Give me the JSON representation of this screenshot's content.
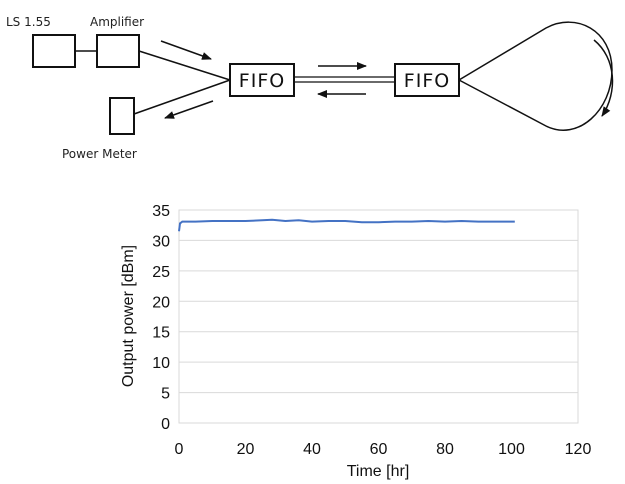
{
  "diagram": {
    "labels": {
      "source": "LS 1.55",
      "amplifier": "Amplifier",
      "power_meter": "Power Meter",
      "fifo_left": "FIFO",
      "fifo_right": "FIFO"
    }
  },
  "chart_data": {
    "type": "line",
    "title": "",
    "xlabel": "Time [hr]",
    "ylabel": "Output power [dBm]",
    "xlim": [
      0,
      120
    ],
    "ylim": [
      0,
      35
    ],
    "xticks": [
      0,
      20,
      40,
      60,
      80,
      100,
      120
    ],
    "yticks": [
      0,
      5,
      10,
      15,
      20,
      25,
      30,
      35
    ],
    "grid": "horizontal",
    "legend": "none",
    "series": [
      {
        "color": "#4472C4",
        "x": [
          0,
          0.3,
          1,
          5,
          10,
          15,
          20,
          25,
          28,
          32,
          36,
          40,
          45,
          50,
          55,
          60,
          65,
          70,
          75,
          80,
          85,
          90,
          95,
          100,
          101
        ],
        "y": [
          31.5,
          32.8,
          33.1,
          33.1,
          33.2,
          33.2,
          33.2,
          33.3,
          33.4,
          33.2,
          33.3,
          33.1,
          33.2,
          33.2,
          33.0,
          33.0,
          33.1,
          33.1,
          33.2,
          33.1,
          33.2,
          33.1,
          33.1,
          33.1,
          33.1
        ]
      }
    ]
  }
}
